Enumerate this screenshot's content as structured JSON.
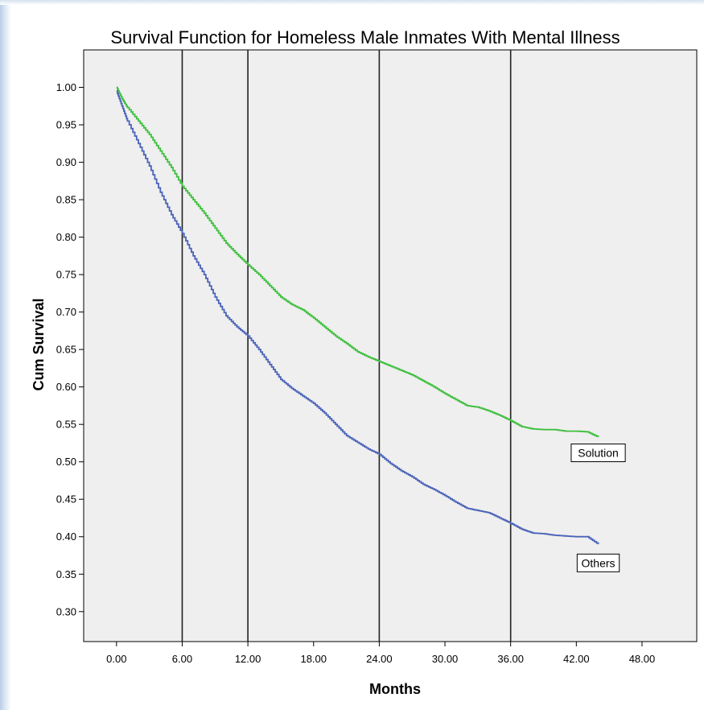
{
  "chart_data": {
    "type": "line",
    "title": "Survival Function for Homeless Male Inmates With Mental Illness",
    "xlabel": "Months",
    "ylabel": "Cum Survival",
    "xlim": [
      -3,
      53
    ],
    "ylim": [
      0.26,
      1.05
    ],
    "x_ticks": [
      0,
      6,
      12,
      18,
      24,
      30,
      36,
      42,
      48
    ],
    "x_tick_labels": [
      "0.00",
      "6.00",
      "12.00",
      "18.00",
      "24.00",
      "30.00",
      "36.00",
      "42.00",
      "48.00"
    ],
    "y_ticks": [
      1.0,
      0.95,
      0.9,
      0.85,
      0.8,
      0.75,
      0.7,
      0.65,
      0.6,
      0.55,
      0.5,
      0.45,
      0.4,
      0.35,
      0.3
    ],
    "y_tick_labels": [
      "1.00",
      "0.95",
      "0.90",
      "0.85",
      "0.80",
      "0.75",
      "0.70",
      "0.65",
      "0.60",
      "0.55",
      "0.50",
      "0.45",
      "0.40",
      "0.35",
      "0.30"
    ],
    "reference_lines_x": [
      6,
      12,
      24,
      36
    ],
    "background": "#efefef",
    "grid": false,
    "series": [
      {
        "name": "Solution",
        "color": "#3fbf3f",
        "x": [
          0,
          0.5,
          1,
          2,
          3,
          4,
          5,
          6,
          7,
          8,
          9,
          10,
          11,
          12,
          13,
          14,
          15,
          16,
          17,
          18,
          19,
          20,
          21,
          22,
          23,
          24,
          25,
          26,
          27,
          28,
          29,
          30,
          31,
          32,
          33,
          34,
          35,
          36,
          37,
          38,
          39,
          40,
          41,
          42,
          43,
          44
        ],
        "y": [
          1.0,
          0.985,
          0.973,
          0.955,
          0.937,
          0.915,
          0.893,
          0.868,
          0.85,
          0.832,
          0.812,
          0.792,
          0.777,
          0.763,
          0.75,
          0.735,
          0.72,
          0.71,
          0.703,
          0.692,
          0.68,
          0.668,
          0.658,
          0.647,
          0.64,
          0.634,
          0.628,
          0.622,
          0.616,
          0.608,
          0.6,
          0.591,
          0.583,
          0.575,
          0.573,
          0.568,
          0.562,
          0.555,
          0.547,
          0.544,
          0.543,
          0.543,
          0.541,
          0.541,
          0.54,
          0.533
        ]
      },
      {
        "name": "Others",
        "color": "#4a63b8",
        "x": [
          0,
          0.5,
          1,
          2,
          3,
          4,
          5,
          6,
          7,
          8,
          9,
          10,
          11,
          12,
          13,
          14,
          15,
          16,
          17,
          18,
          19,
          20,
          21,
          22,
          23,
          24,
          25,
          26,
          27,
          28,
          29,
          30,
          31,
          32,
          33,
          34,
          35,
          36,
          37,
          38,
          39,
          40,
          41,
          42,
          43,
          44
        ],
        "y": [
          0.995,
          0.975,
          0.955,
          0.925,
          0.895,
          0.86,
          0.83,
          0.805,
          0.775,
          0.75,
          0.72,
          0.695,
          0.68,
          0.668,
          0.65,
          0.63,
          0.61,
          0.598,
          0.588,
          0.578,
          0.565,
          0.55,
          0.535,
          0.526,
          0.517,
          0.51,
          0.498,
          0.488,
          0.48,
          0.47,
          0.463,
          0.455,
          0.446,
          0.438,
          0.435,
          0.432,
          0.425,
          0.418,
          0.41,
          0.405,
          0.404,
          0.402,
          0.401,
          0.4,
          0.4,
          0.39
        ]
      }
    ],
    "legend_labels": [
      {
        "text": "Solution",
        "x": 44,
        "y": 0.512
      },
      {
        "text": "Others",
        "x": 44,
        "y": 0.365
      }
    ]
  }
}
